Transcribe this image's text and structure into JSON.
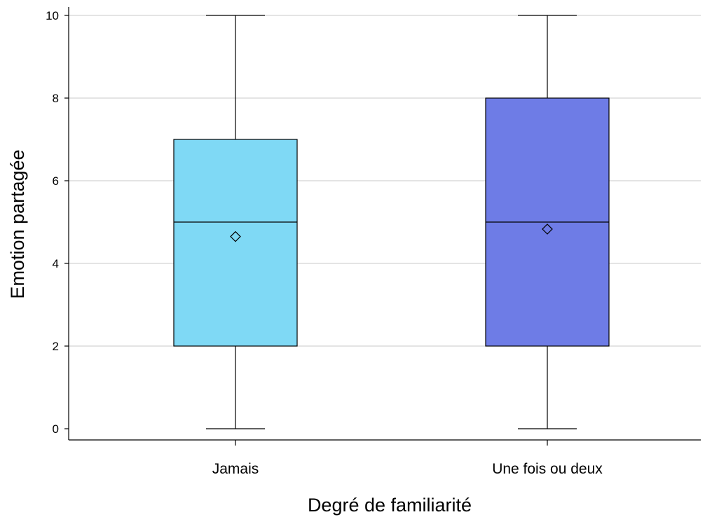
{
  "chart_data": {
    "type": "box",
    "title": "",
    "xlabel": "Degré de familiarité",
    "ylabel": "Emotion partagée",
    "ylim": [
      0,
      10
    ],
    "yticks": [
      0,
      2,
      4,
      6,
      8,
      10
    ],
    "grid": "horizontal",
    "categories": [
      "Jamais",
      "Une fois ou deux"
    ],
    "boxes": [
      {
        "category": "Jamais",
        "min": 0,
        "q1": 2,
        "median": 5,
        "q3": 7,
        "max": 10,
        "mean": 4.65,
        "color": "#7fd9f5"
      },
      {
        "category": "Une fois ou deux",
        "min": 0,
        "q1": 2,
        "median": 5,
        "q3": 8,
        "max": 10,
        "mean": 4.83,
        "color": "#6e7ce6"
      }
    ]
  }
}
